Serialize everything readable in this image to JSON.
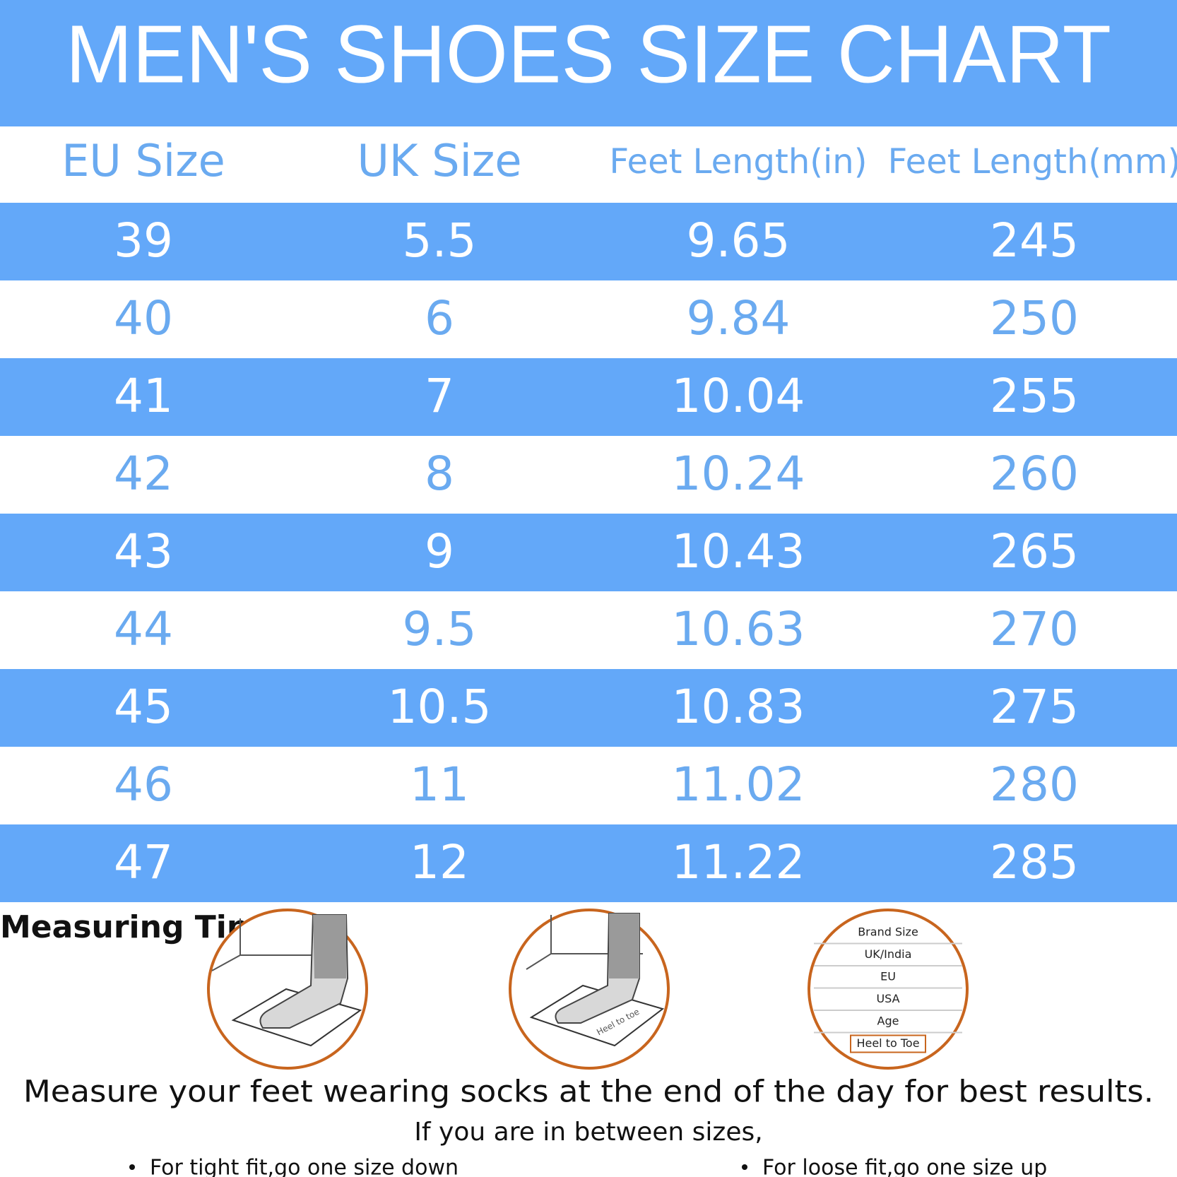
{
  "title": "MEN'S SHOES SIZE CHART",
  "table": {
    "header": [
      "EU Size",
      "UK Size",
      "Feet Length(in)",
      "Feet Length(mm)"
    ],
    "rows": [
      [
        "39",
        "5.5",
        "9.65",
        "245"
      ],
      [
        "40",
        "6",
        "9.84",
        "250"
      ],
      [
        "41",
        "7",
        "10.04",
        "255"
      ],
      [
        "42",
        "8",
        "10.24",
        "260"
      ],
      [
        "43",
        "9",
        "10.43",
        "265"
      ],
      [
        "44",
        "9.5",
        "10.63",
        "270"
      ],
      [
        "45",
        "10.5",
        "10.83",
        "275"
      ],
      [
        "46",
        "11",
        "11.02",
        "280"
      ],
      [
        "47",
        "12",
        "11.22",
        "285"
      ]
    ]
  },
  "measuring_tip": {
    "title": "Measuring Tip",
    "mat_label": "Heel to toe",
    "size_card": [
      "Brand Size",
      "UK/India",
      "EU",
      "USA",
      "Age",
      "Heel to Toe"
    ]
  },
  "footer": {
    "note": "Measure your feet wearing socks at the end of the day for best results.",
    "between": "If you are in between sizes,",
    "tips": [
      "For tight fit,go one size down",
      "For loose fit,go one size up"
    ]
  }
}
